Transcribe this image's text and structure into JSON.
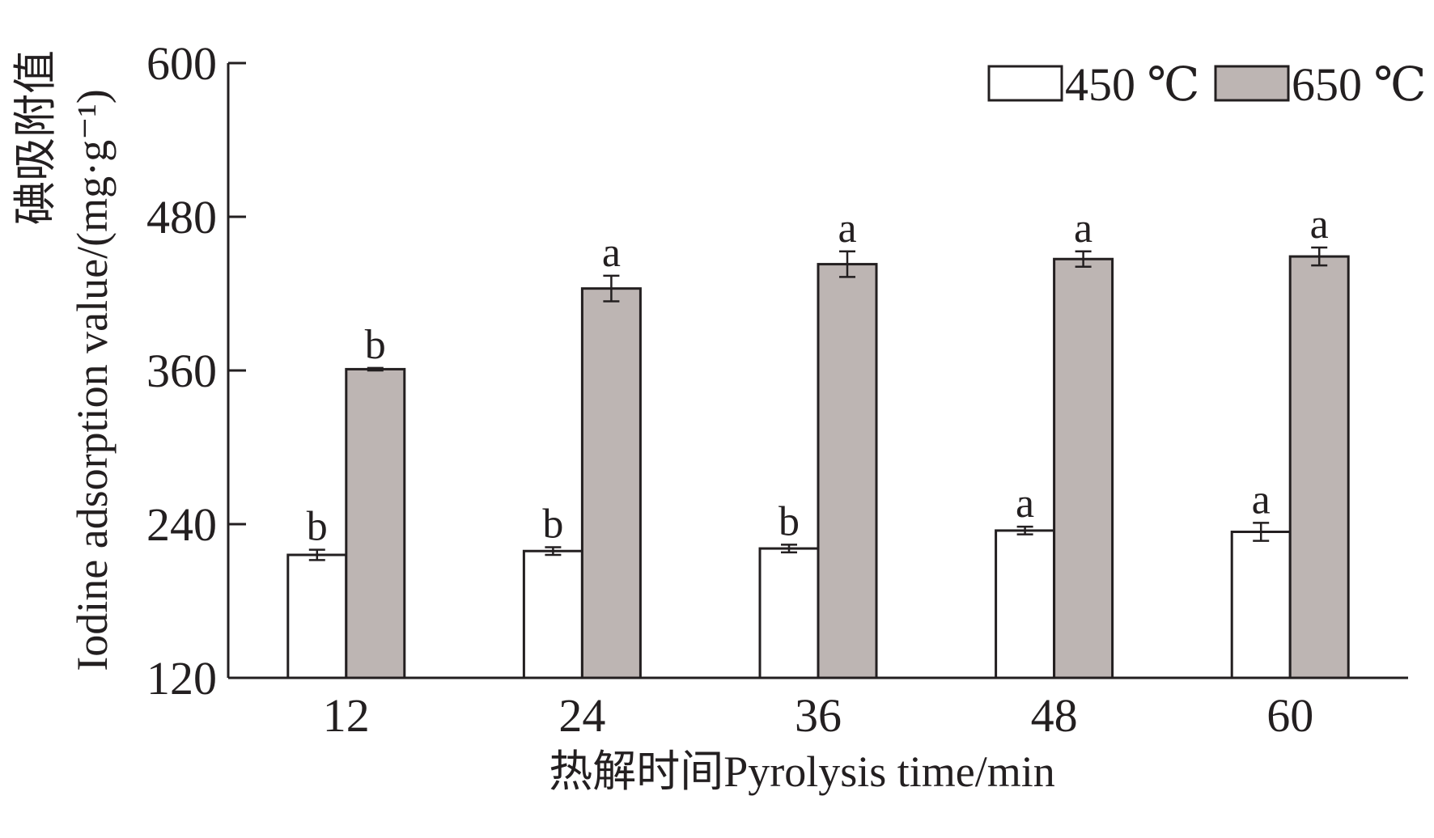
{
  "chart_data": {
    "type": "bar",
    "xlabel": "热解时间Pyrolysis time/min",
    "ylabel": "碘吸附值 Iodine adsorption value/(mg·g⁻¹)",
    "ylim": [
      120,
      600
    ],
    "yticks": [
      "120",
      "240",
      "360",
      "480",
      "600"
    ],
    "categories": [
      "12",
      "24",
      "36",
      "48",
      "60"
    ],
    "grid": false,
    "legend_position": "top-right",
    "series": [
      {
        "name": "450 ℃",
        "color": "#ffffff",
        "values": [
          216,
          219,
          221,
          235,
          234
        ],
        "errors": [
          4,
          3,
          3,
          3,
          7
        ],
        "labels": [
          "b",
          "b",
          "b",
          "a",
          "a"
        ]
      },
      {
        "name": "650 ℃",
        "color": "#bdb5b3",
        "values": [
          361,
          424,
          443,
          447,
          449
        ],
        "errors": [
          1,
          10,
          10,
          6,
          7
        ],
        "labels": [
          "b",
          "a",
          "a",
          "a",
          "a"
        ]
      }
    ]
  }
}
